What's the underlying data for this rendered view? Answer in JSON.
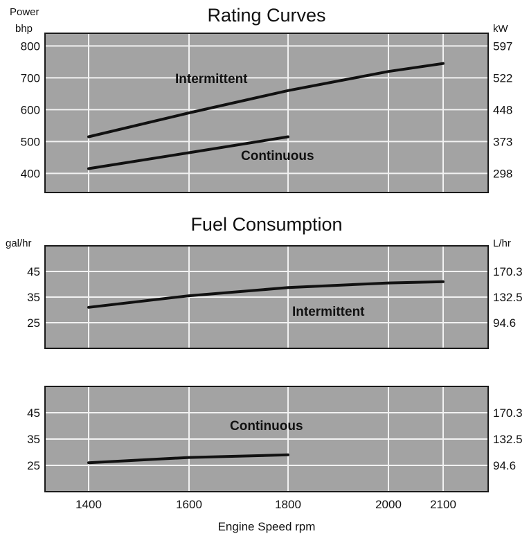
{
  "colors": {
    "plot_bg": "#a3a3a3",
    "grid": "#f2f2f2",
    "frame": "#1a1a1a",
    "line": "#111111"
  },
  "chart_data": [
    {
      "type": "line",
      "title": "Rating Curves",
      "left_unit": [
        "Power",
        "bhp"
      ],
      "right_unit": "kW",
      "grid": true,
      "x_ticks": [
        1400,
        1600,
        1800,
        2000,
        2100
      ],
      "xlim": [
        1400,
        2100
      ],
      "ylim": [
        340,
        840
      ],
      "y_ticks": [
        400,
        500,
        600,
        700,
        800
      ],
      "y_tick_labels": [
        "400",
        "500",
        "600",
        "700",
        "800"
      ],
      "right_ticks": [
        {
          "value": 400,
          "label": "298"
        },
        {
          "value": 500,
          "label": "373"
        },
        {
          "value": 600,
          "label": "448"
        },
        {
          "value": 700,
          "label": "522"
        },
        {
          "value": 800,
          "label": "597"
        }
      ],
      "series": [
        {
          "name": "Intermittent",
          "x": [
            1400,
            1600,
            1800,
            2000,
            2100
          ],
          "y": [
            515,
            590,
            660,
            720,
            745
          ]
        },
        {
          "name": "Continuous",
          "x": [
            1400,
            1600,
            1800
          ],
          "y": [
            415,
            465,
            515
          ]
        }
      ]
    },
    {
      "type": "line",
      "title": "Fuel Consumption",
      "left_unit": [
        "gal/hr"
      ],
      "right_unit": "L/hr",
      "grid": true,
      "x_ticks": [
        1400,
        1600,
        1800,
        2000,
        2100
      ],
      "xlim": [
        1400,
        2100
      ],
      "ylim": [
        15,
        55
      ],
      "y_ticks": [
        25,
        35,
        45
      ],
      "y_tick_labels": [
        "25",
        "35",
        "45"
      ],
      "right_ticks": [
        {
          "value": 25,
          "label": "94.6"
        },
        {
          "value": 35,
          "label": "132.5"
        },
        {
          "value": 45,
          "label": "170.3"
        }
      ],
      "series": [
        {
          "name": "Intermittent",
          "x": [
            1400,
            1600,
            1800,
            2000,
            2100
          ],
          "y": [
            31,
            35.5,
            38.7,
            40.5,
            41
          ]
        }
      ]
    },
    {
      "type": "line",
      "title": "",
      "left_unit": [],
      "right_unit": "",
      "grid": true,
      "x_ticks": [
        1400,
        1600,
        1800,
        2000,
        2100
      ],
      "xlim": [
        1400,
        2100
      ],
      "ylim": [
        15,
        55
      ],
      "y_ticks": [
        25,
        35,
        45
      ],
      "y_tick_labels": [
        "25",
        "35",
        "45"
      ],
      "right_ticks": [
        {
          "value": 25,
          "label": "94.6"
        },
        {
          "value": 35,
          "label": "132.5"
        },
        {
          "value": 45,
          "label": "170.3"
        }
      ],
      "series": [
        {
          "name": "Continuous",
          "x": [
            1400,
            1600,
            1800
          ],
          "y": [
            26,
            28,
            29
          ]
        }
      ]
    }
  ],
  "x_axis": {
    "ticks": [
      "1400",
      "1600",
      "1800",
      "2000",
      "2100"
    ],
    "label": "Engine Speed rpm"
  }
}
